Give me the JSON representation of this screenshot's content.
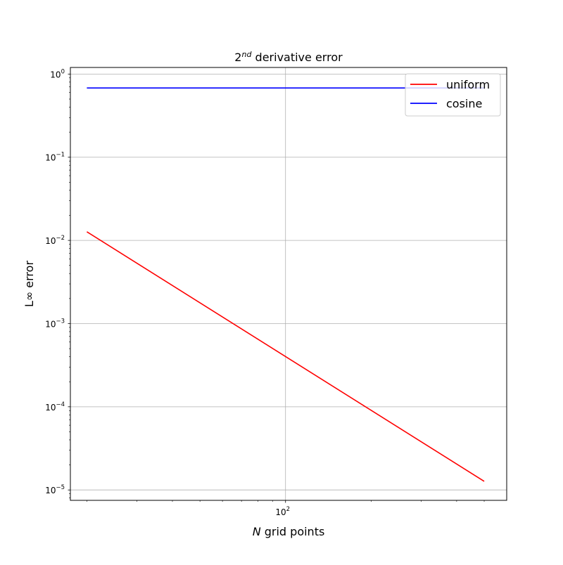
{
  "chart_data": {
    "type": "line",
    "title": {
      "base": "2",
      "superscript": "nd",
      "rest": " derivative error"
    },
    "xlabel": {
      "italic": "N",
      "rest": " grid points"
    },
    "ylabel": "L∞ error",
    "x_scale": "log",
    "y_scale": "log",
    "xlim": [
      17.5,
      600
    ],
    "ylim": [
      7.5e-06,
      1.2
    ],
    "grid": true,
    "legend_position": "top-right",
    "x_ticks": [
      {
        "value": 100,
        "base": "10",
        "exp": "2"
      }
    ],
    "x_minor_ticks": [
      20,
      30,
      40,
      50,
      60,
      70,
      80,
      90,
      200,
      300,
      400,
      500
    ],
    "y_ticks": [
      {
        "value": 1e-05,
        "base": "10",
        "exp": "−5"
      },
      {
        "value": 0.0001,
        "base": "10",
        "exp": "−4"
      },
      {
        "value": 0.001,
        "base": "10",
        "exp": "−3"
      },
      {
        "value": 0.01,
        "base": "10",
        "exp": "−2"
      },
      {
        "value": 0.1,
        "base": "10",
        "exp": "−1"
      },
      {
        "value": 1,
        "base": "10",
        "exp": "0"
      }
    ],
    "series": [
      {
        "name": "uniform",
        "color": "#ff0000",
        "x": [
          20,
          500
        ],
        "y": [
          0.0127,
          1.27e-05
        ]
      },
      {
        "name": "cosine",
        "color": "#0000ff",
        "x": [
          20,
          500
        ],
        "y": [
          0.68,
          0.68
        ]
      }
    ]
  }
}
